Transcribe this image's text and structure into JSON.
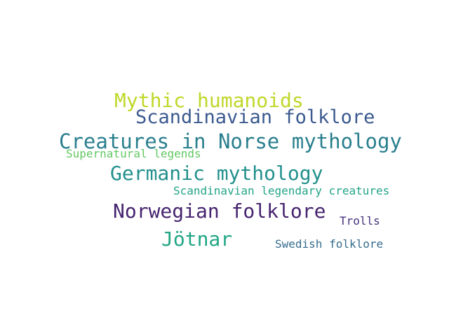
{
  "words": [
    {
      "text": "Mythic humanoids",
      "color": "#c0d72a"
    },
    {
      "text": "Scandinavian folklore",
      "color": "#3b5a8f"
    },
    {
      "text": "Creatures in Norse mythology",
      "color": "#2a7f8e"
    },
    {
      "text": "Supernatural legends",
      "color": "#62c862"
    },
    {
      "text": "Germanic mythology",
      "color": "#23908c"
    },
    {
      "text": "Scandinavian legendary creatures",
      "color": "#22a488"
    },
    {
      "text": "Norwegian folklore",
      "color": "#46246f"
    },
    {
      "text": "Trolls",
      "color": "#45337f"
    },
    {
      "text": "Jötnar",
      "color": "#21a685"
    },
    {
      "text": "Swedish folklore",
      "color": "#356c8d"
    }
  ]
}
